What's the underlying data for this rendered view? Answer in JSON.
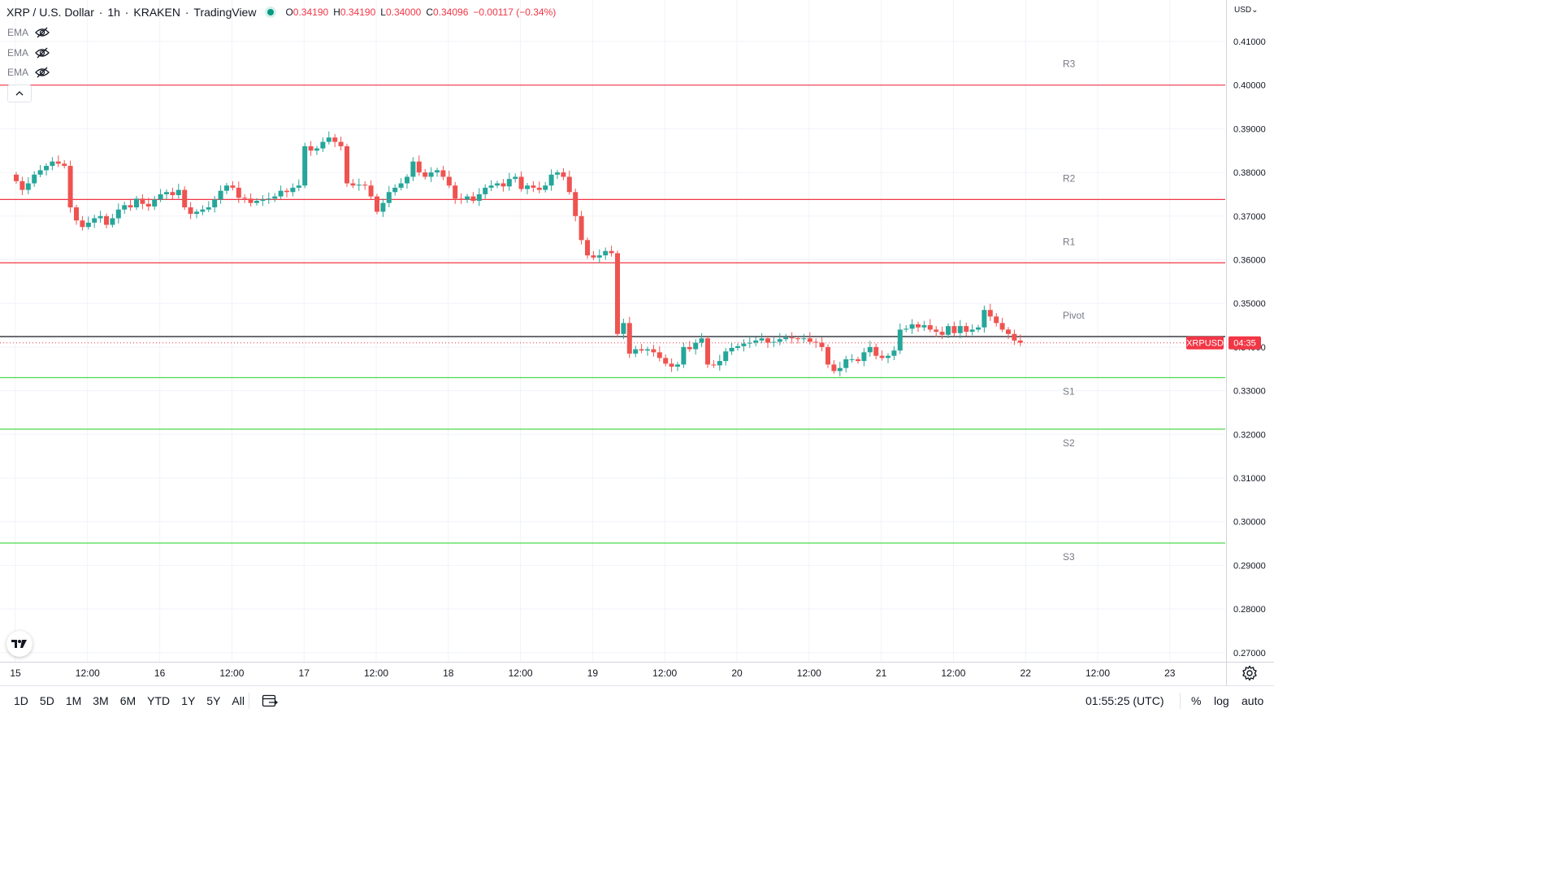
{
  "header": {
    "symbol": "XRP / U.S. Dollar",
    "interval": "1h",
    "exchange": "KRAKEN",
    "provider": "TradingView",
    "ohlc": {
      "o_label": "O",
      "o_value": "0.34190",
      "h_label": "H",
      "h_value": "0.34190",
      "l_label": "L",
      "l_value": "0.34000",
      "c_label": "C",
      "c_value": "0.34096",
      "change": "−0.00117 (−0.34%)"
    }
  },
  "indicators": [
    "EMA",
    "EMA",
    "EMA"
  ],
  "currency_label": "USD",
  "price_tag": {
    "symbol": "XRPUSD",
    "countdown": "04:35",
    "color": "#f23645"
  },
  "colors": {
    "up": "#26a69a",
    "down": "#ef5350",
    "resistance": "#f23645",
    "support": "#4cd94c",
    "pivot": "#131722"
  },
  "bottom_bar": {
    "ranges": [
      "1D",
      "5D",
      "1M",
      "3M",
      "6M",
      "YTD",
      "1Y",
      "5Y",
      "All"
    ],
    "clock": "01:55:25 (UTC)",
    "options": [
      "%",
      "log",
      "auto"
    ]
  },
  "chart_data": {
    "type": "candlestick",
    "title": "XRP / U.S. Dollar · 1h · KRAKEN",
    "ylim": [
      0.265,
      0.418
    ],
    "y_ticks": [
      "0.41000",
      "0.40000",
      "0.39000",
      "0.38000",
      "0.37000",
      "0.36000",
      "0.35000",
      "0.34000",
      "0.33000",
      "0.32000",
      "0.31000",
      "0.30000",
      "0.29000",
      "0.28000",
      "0.27000"
    ],
    "x_ticks": [
      "15",
      "12:00",
      "16",
      "12:00",
      "17",
      "12:00",
      "18",
      "12:00",
      "19",
      "12:00",
      "20",
      "12:00",
      "21",
      "12:00",
      "22",
      "12:00",
      "23"
    ],
    "x_range_hours": [
      0,
      163
    ],
    "levels": [
      {
        "name": "R3",
        "value": 0.4,
        "kind": "resistance"
      },
      {
        "name": "R2",
        "value": 0.3738,
        "kind": "resistance"
      },
      {
        "name": "R1",
        "value": 0.3593,
        "kind": "resistance"
      },
      {
        "name": "Pivot",
        "value": 0.3424,
        "kind": "pivot"
      },
      {
        "name": "S1",
        "value": 0.333,
        "kind": "support"
      },
      {
        "name": "S2",
        "value": 0.3212,
        "kind": "support"
      },
      {
        "name": "S3",
        "value": 0.2951,
        "kind": "support"
      }
    ],
    "last_price": 0.34096,
    "closes": [
      0.378,
      0.376,
      0.3775,
      0.3795,
      0.3805,
      0.3815,
      0.3825,
      0.382,
      0.3815,
      0.372,
      0.369,
      0.3675,
      0.3685,
      0.3695,
      0.37,
      0.368,
      0.3695,
      0.3715,
      0.3725,
      0.372,
      0.374,
      0.3728,
      0.3722,
      0.3738,
      0.375,
      0.3755,
      0.3748,
      0.376,
      0.372,
      0.3705,
      0.371,
      0.3715,
      0.372,
      0.3738,
      0.3758,
      0.377,
      0.3765,
      0.3742,
      0.374,
      0.373,
      0.3735,
      0.3738,
      0.374,
      0.3745,
      0.3758,
      0.3755,
      0.3765,
      0.377,
      0.386,
      0.385,
      0.3855,
      0.387,
      0.388,
      0.387,
      0.386,
      0.3775,
      0.377,
      0.3772,
      0.377,
      0.3745,
      0.371,
      0.373,
      0.3755,
      0.3765,
      0.3775,
      0.379,
      0.3825,
      0.38,
      0.379,
      0.38,
      0.3805,
      0.379,
      0.377,
      0.374,
      0.3738,
      0.3745,
      0.3735,
      0.375,
      0.3765,
      0.377,
      0.3775,
      0.3768,
      0.3785,
      0.379,
      0.3762,
      0.377,
      0.3765,
      0.376,
      0.377,
      0.3795,
      0.38,
      0.379,
      0.3755,
      0.37,
      0.3645,
      0.361,
      0.3605,
      0.361,
      0.362,
      0.3615,
      0.343,
      0.3455,
      0.3385,
      0.3395,
      0.3392,
      0.3395,
      0.3388,
      0.3375,
      0.3362,
      0.3355,
      0.336,
      0.34,
      0.3395,
      0.341,
      0.342,
      0.336,
      0.3358,
      0.3368,
      0.339,
      0.3398,
      0.3402,
      0.3408,
      0.341,
      0.3415,
      0.342,
      0.341,
      0.3412,
      0.3418,
      0.3422,
      0.342,
      0.3418,
      0.342,
      0.3412,
      0.341,
      0.34,
      0.336,
      0.3345,
      0.3352,
      0.3372,
      0.3372,
      0.3368,
      0.3388,
      0.34,
      0.338,
      0.3375,
      0.338,
      0.3392,
      0.344,
      0.3442,
      0.3452,
      0.3445,
      0.345,
      0.344,
      0.3435,
      0.3428,
      0.3448,
      0.3432,
      0.3448,
      0.3435,
      0.344,
      0.3445,
      0.3485,
      0.347,
      0.3455,
      0.344,
      0.343,
      0.3415,
      0.341
    ]
  }
}
